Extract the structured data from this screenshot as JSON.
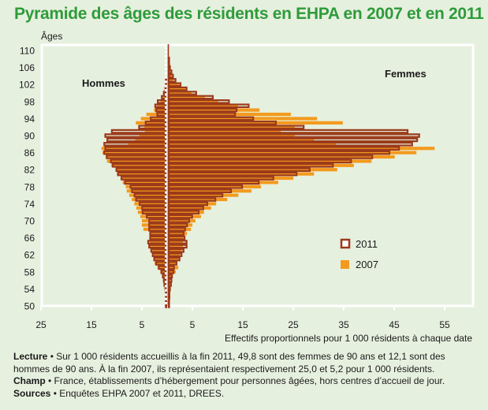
{
  "title": "Pyramide des âges des résidents en EHPA en 2007 et en 2011",
  "notes": {
    "lecture_label": "Lecture",
    "lecture_text_1": " • Sur 1 000 résidents accueillis à la fin 2011, 49,8 sont des femmes de 90 ans et 12,1 sont des",
    "lecture_text_2": "hommes de 90 ans. À la fin 2007, ils représentaient respectivement 25,0 et 5,2 pour 1 000 résidents.",
    "champ_label": "Champ",
    "champ_text": " • France, établissements d’hébergement pour personnes âgées, hors centres d’accueil de jour.",
    "sources_label": "Sources",
    "sources_text": " • Enquêtes EHPA 2007 et 2011, DREES."
  },
  "colors": {
    "title": "#2e9b3a",
    "series_2011": "#9b3a1a",
    "series_2007": "#f39a1e",
    "background": "#e6f0df",
    "frame": "#ffffff"
  },
  "chart_data": {
    "type": "bar",
    "subtype": "population-pyramid",
    "title": "Pyramide des âges des résidents en EHPA en 2007 et en 2011",
    "ylabel": "Âges",
    "xlabel": "Effectifs proportionnels pour 1 000 résidents à chaque date",
    "left_group_label": "Hommes",
    "right_group_label": "Femmes",
    "yticks": [
      110,
      106,
      102,
      98,
      94,
      90,
      86,
      82,
      78,
      74,
      70,
      66,
      62,
      58,
      54,
      50
    ],
    "ylim": [
      50,
      110
    ],
    "xlim_left": [
      0,
      25
    ],
    "xlim_right": [
      0,
      60
    ],
    "xticks_left": [
      25,
      15,
      5
    ],
    "xticks_right": [
      5,
      15,
      25,
      35,
      45,
      55
    ],
    "legend": {
      "position": "right-middle",
      "entries": [
        {
          "label": "2011",
          "style": "outline"
        },
        {
          "label": "2007",
          "style": "filled"
        }
      ]
    },
    "grid": false,
    "ages": [
      50,
      51,
      52,
      53,
      54,
      55,
      56,
      57,
      58,
      59,
      60,
      61,
      62,
      63,
      64,
      65,
      66,
      67,
      68,
      69,
      70,
      71,
      72,
      73,
      74,
      75,
      76,
      77,
      78,
      79,
      80,
      81,
      82,
      83,
      84,
      85,
      86,
      87,
      88,
      89,
      90,
      91,
      92,
      93,
      94,
      95,
      96,
      97,
      98,
      99,
      100,
      101,
      102,
      103,
      104,
      105,
      106,
      107,
      108,
      109,
      110
    ],
    "series": [
      {
        "name": "Hommes 2011",
        "group": "Hommes",
        "year": "2011",
        "values": [
          0.1,
          0.1,
          0.1,
          0.1,
          0.2,
          0.4,
          0.5,
          0.7,
          1.0,
          1.5,
          2.0,
          2.4,
          2.7,
          3.0,
          3.4,
          3.6,
          3.2,
          3.2,
          3.4,
          3.4,
          3.4,
          3.9,
          4.7,
          4.8,
          5.3,
          6.0,
          6.3,
          6.8,
          7.1,
          8.2,
          8.9,
          9.6,
          9.9,
          10.6,
          11.0,
          11.8,
          12.3,
          12.1,
          12.3,
          11.7,
          12.1,
          10.8,
          5.4,
          4.1,
          3.1,
          1.8,
          2.0,
          2.2,
          1.7,
          0.9,
          0.5,
          0.2,
          0.1,
          0.1,
          0,
          0,
          0,
          0,
          0,
          0,
          0
        ]
      },
      {
        "name": "Hommes 2007",
        "group": "Hommes",
        "year": "2007",
        "values": [
          0.1,
          0.1,
          0.1,
          0.1,
          0.1,
          0.2,
          0.4,
          0.5,
          0.9,
          1.6,
          2.2,
          2.2,
          2.6,
          2.6,
          3.1,
          3.1,
          3.1,
          3.1,
          4.4,
          4.7,
          4.7,
          5.0,
          5.5,
          5.8,
          6.2,
          6.7,
          7.2,
          7.7,
          7.9,
          8.5,
          8.7,
          9.4,
          9.8,
          10.8,
          11.6,
          11.9,
          12.5,
          12.7,
          7.4,
          6.0,
          5.2,
          4.1,
          4.2,
          5.9,
          4.9,
          3.8,
          2.3,
          1.7,
          1.0,
          0.5,
          0.1,
          0,
          0,
          0,
          0,
          0,
          0,
          0,
          0,
          0,
          0
        ]
      },
      {
        "name": "Femmes 2011",
        "group": "Femmes",
        "year": "2011",
        "values": [
          0.2,
          0.2,
          0.3,
          0.3,
          0.4,
          0.6,
          0.7,
          0.8,
          1.1,
          1.2,
          1.7,
          2.3,
          2.7,
          3.1,
          3.7,
          3.7,
          3.3,
          3.1,
          3.4,
          3.8,
          4.2,
          4.8,
          6.1,
          7.0,
          7.8,
          9.4,
          10.8,
          12.5,
          14.7,
          18.0,
          20.9,
          25.5,
          28.1,
          32.7,
          36.3,
          40.5,
          43.9,
          45.8,
          48.4,
          49.4,
          49.8,
          47.5,
          26.9,
          21.4,
          16.9,
          13.3,
          13.6,
          16.0,
          12.1,
          8.9,
          5.6,
          3.7,
          2.5,
          1.5,
          1.0,
          0.7,
          0.4,
          0.2,
          0.1,
          0,
          0
        ]
      },
      {
        "name": "Femmes 2007",
        "group": "Femmes",
        "year": "2007",
        "values": [
          0.1,
          0.1,
          0.2,
          0.2,
          0.2,
          0.2,
          0.3,
          0.8,
          1.4,
          1.9,
          1.7,
          1.9,
          2.2,
          2.5,
          2.8,
          2.8,
          2.9,
          3.6,
          4.4,
          4.7,
          5.3,
          6.4,
          7.0,
          8.4,
          9.4,
          11.6,
          13.8,
          16.4,
          18.3,
          21.7,
          24.7,
          28.8,
          33.4,
          36.7,
          40.2,
          44.8,
          49.1,
          52.7,
          33.1,
          28.8,
          25.0,
          22.2,
          25.0,
          34.5,
          29.4,
          24.2,
          18.0,
          13.7,
          9.8,
          7.2,
          4.5,
          3.3,
          2.0,
          0.9,
          0.5,
          0.3,
          0.1,
          0,
          0,
          0,
          0
        ]
      }
    ]
  }
}
